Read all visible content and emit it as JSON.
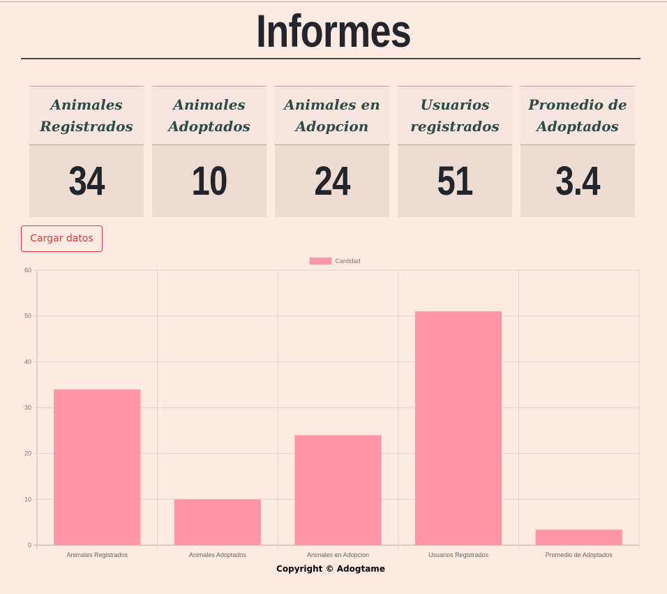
{
  "page": {
    "title": "Informes"
  },
  "stats": [
    {
      "label": "Animales Registrados",
      "value": "34"
    },
    {
      "label": "Animales Adoptados",
      "value": "10"
    },
    {
      "label": "Animales en Adopcion",
      "value": "24"
    },
    {
      "label": "Usuarios registrados",
      "value": "51"
    },
    {
      "label": "Promedio de Adoptados",
      "value": "3.4"
    }
  ],
  "actions": {
    "load_label": "Cargar datos"
  },
  "colors": {
    "bar_fill": "#ff97a8",
    "grid": "#e6d2cd",
    "button_accent": "#dc3545",
    "heading_text": "#2e4b46"
  },
  "chart_data": {
    "type": "bar",
    "categories": [
      "Animales Registrados",
      "Animales Adoptados",
      "Animales en Adopcion",
      "Usuarios Registrados",
      "Promedio de Adoptados"
    ],
    "series": [
      {
        "name": "Cantidad",
        "values": [
          34,
          10,
          24,
          51,
          3.4
        ]
      }
    ],
    "ylim": [
      0,
      60
    ],
    "yticks": [
      0,
      10,
      20,
      30,
      40,
      50,
      60
    ],
    "legend": "top-center",
    "grid": true
  },
  "footer": {
    "text": "Copyright © Adogtame"
  }
}
